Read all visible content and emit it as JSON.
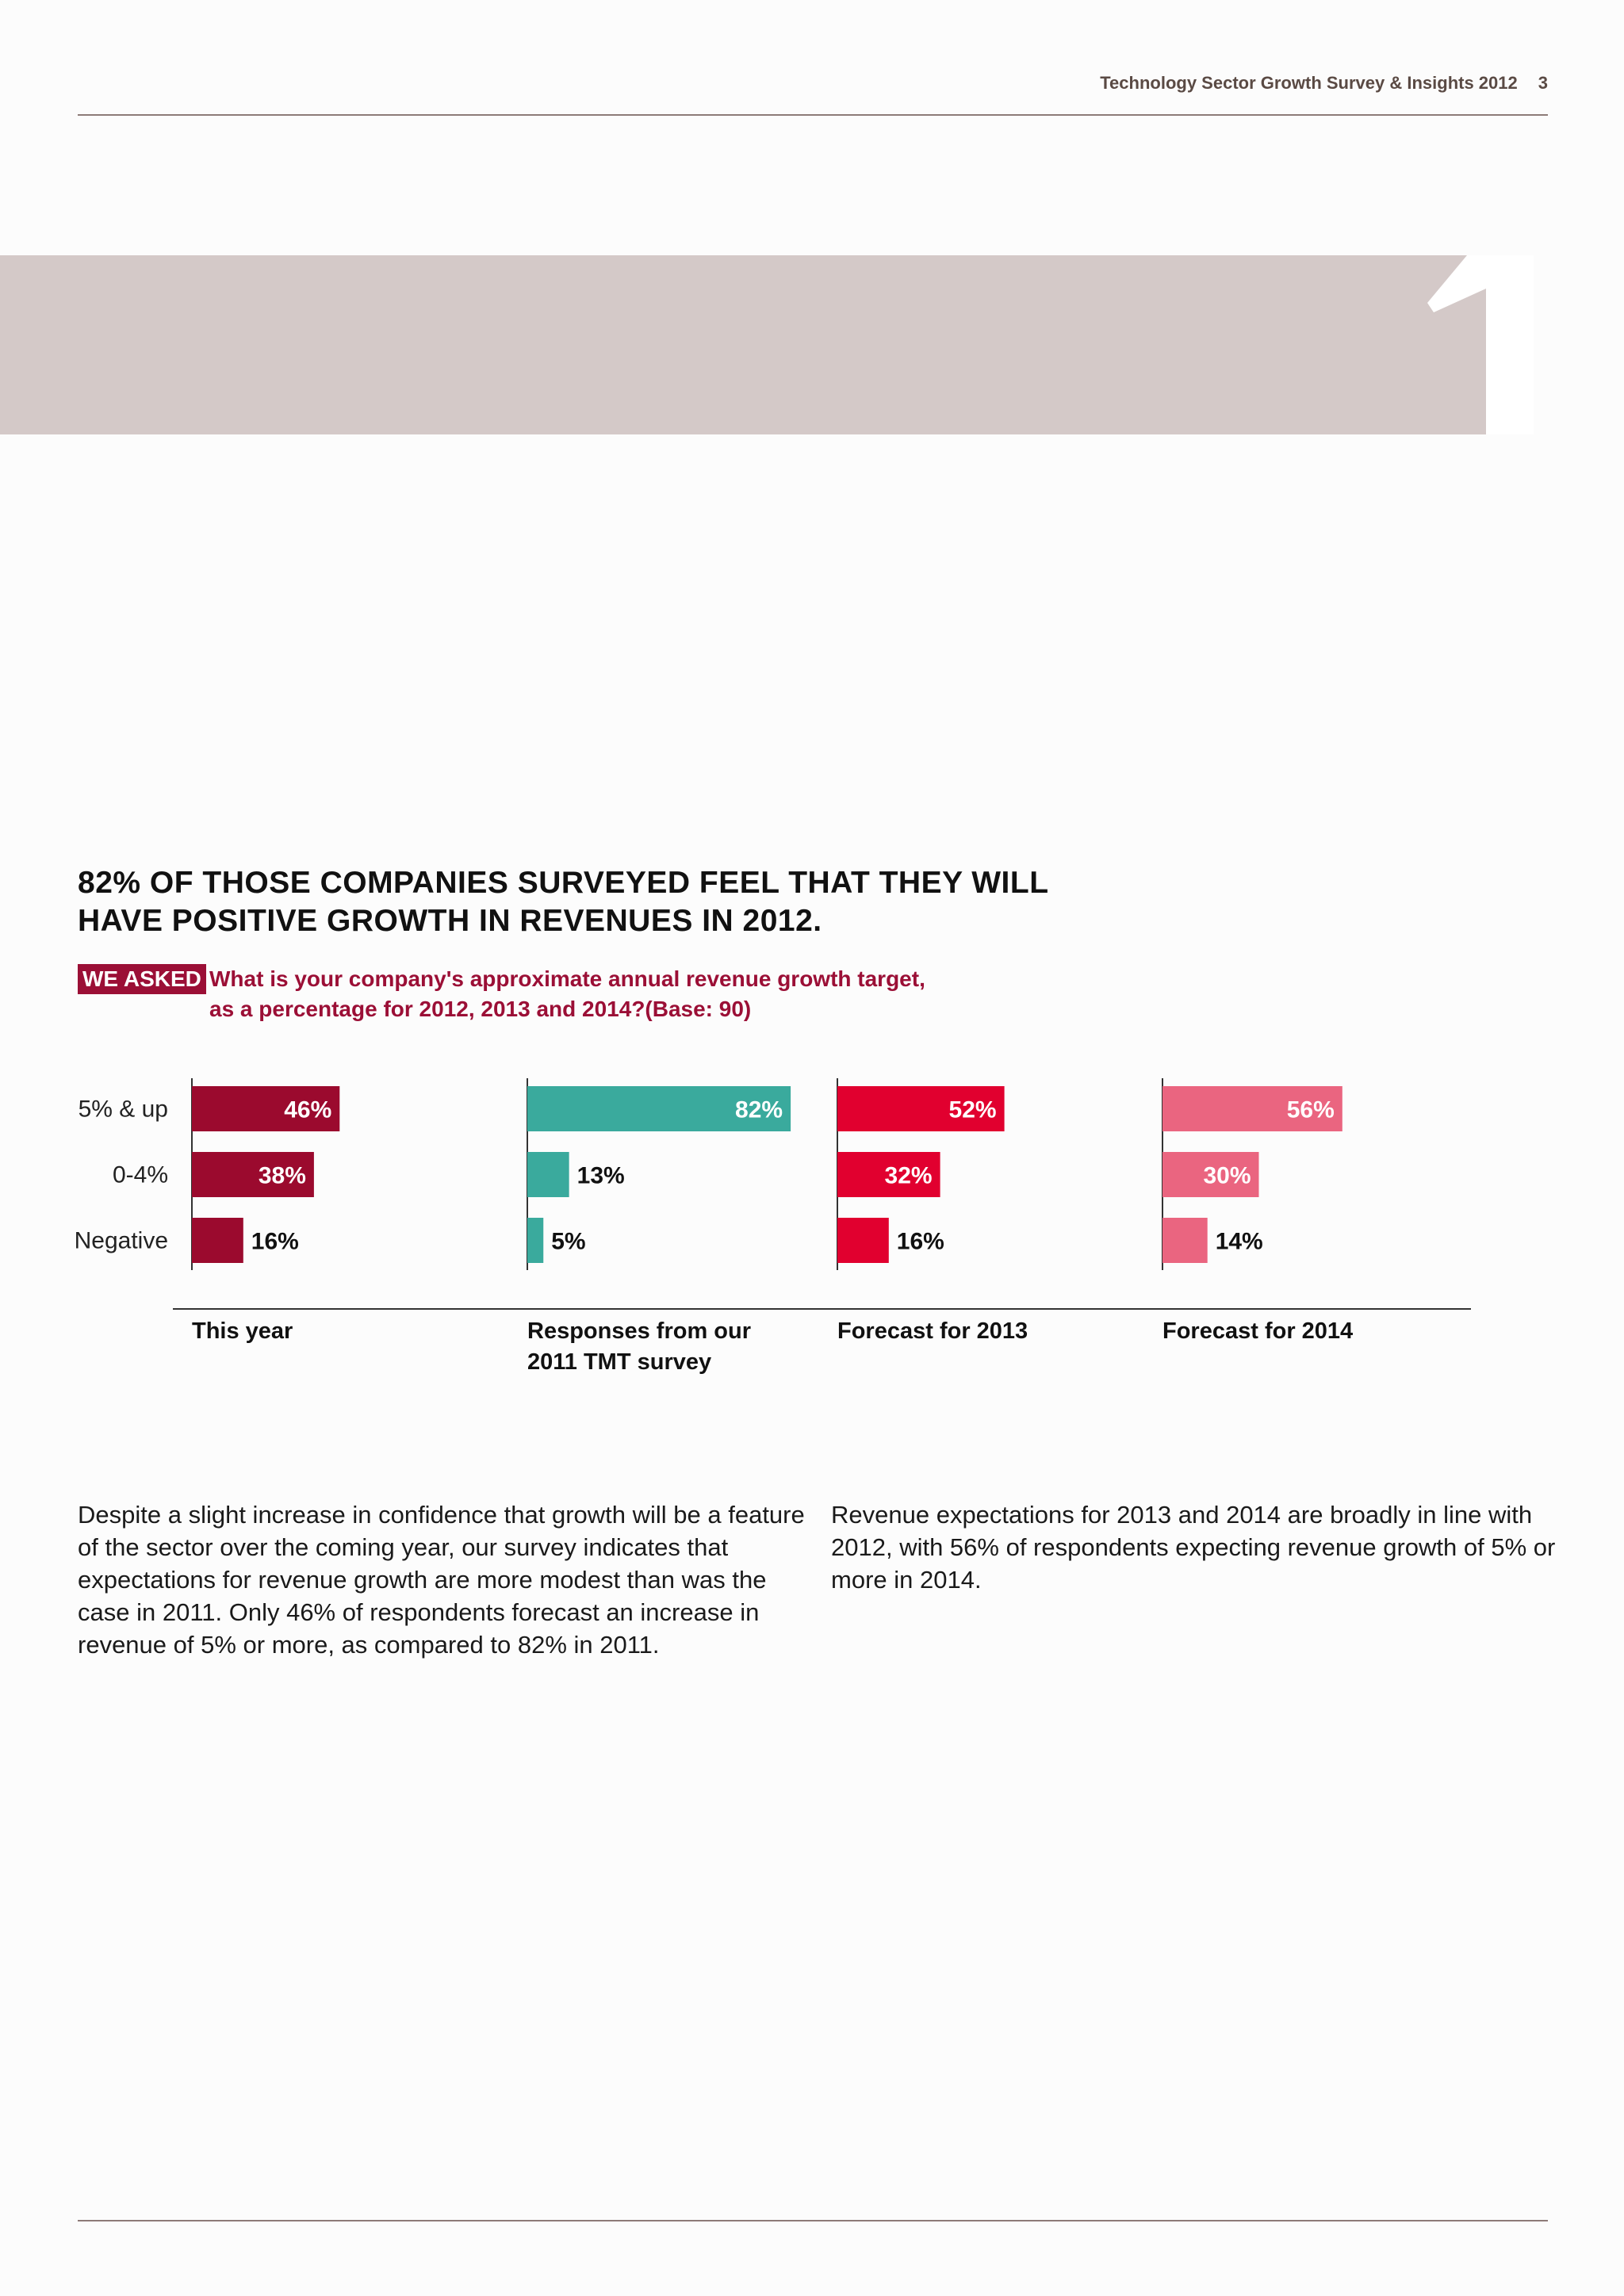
{
  "header": {
    "running_title": "Technology Sector Growth Survey & Insights 2012",
    "page_number": "3"
  },
  "section": {
    "number": "1"
  },
  "headline": "82% OF THOSE COMPANIES SURVEYED FEEL THAT THEY WILL HAVE POSITIVE GROWTH IN REVENUES IN 2012.",
  "we_asked": {
    "tag": "WE ASKED",
    "question_line1": "What is your company's approximate annual revenue growth target,",
    "question_line2": "as a percentage for 2012, 2013 and 2014?(Base: 90)"
  },
  "chart_data": {
    "type": "bar",
    "orientation": "horizontal",
    "categories": [
      "5% & up",
      "0-4%",
      "Negative"
    ],
    "unit": "%",
    "series": [
      {
        "name": "This year",
        "values": [
          46,
          38,
          16
        ],
        "color": "#9b0a2e"
      },
      {
        "name": "Responses from our 2011 TMT survey",
        "values": [
          82,
          13,
          5
        ],
        "color": "#3aaa9d"
      },
      {
        "name": "Forecast for 2013",
        "values": [
          52,
          32,
          16
        ],
        "color": "#e1002f"
      },
      {
        "name": "Forecast for 2014",
        "values": [
          56,
          30,
          14
        ],
        "color": "#ea6580"
      }
    ],
    "data_labels": [
      [
        "46%",
        "38%",
        "16%"
      ],
      [
        "82%",
        "13%",
        "5%"
      ],
      [
        "52%",
        "32%",
        "16%"
      ],
      [
        "56%",
        "30%",
        "14%"
      ]
    ],
    "legend": "below each panel",
    "grid": false
  },
  "column_labels": {
    "c1": "This year",
    "c2_line1": "Responses from our",
    "c2_line2": "2011 TMT survey",
    "c3": "Forecast for 2013",
    "c4": "Forecast for 2014"
  },
  "body": {
    "left": "Despite a slight increase in confidence that growth will be a feature of the sector over the coming year, our survey indicates that expectations for revenue growth are more modest than was the case in 2011. Only 46% of respondents forecast an increase in revenue of 5% or more, as compared to 82% in 2011.",
    "right": "Revenue expectations for 2013 and 2014 are broadly in line with 2012, with 56% of respondents expecting revenue growth of 5% or more in 2014."
  }
}
